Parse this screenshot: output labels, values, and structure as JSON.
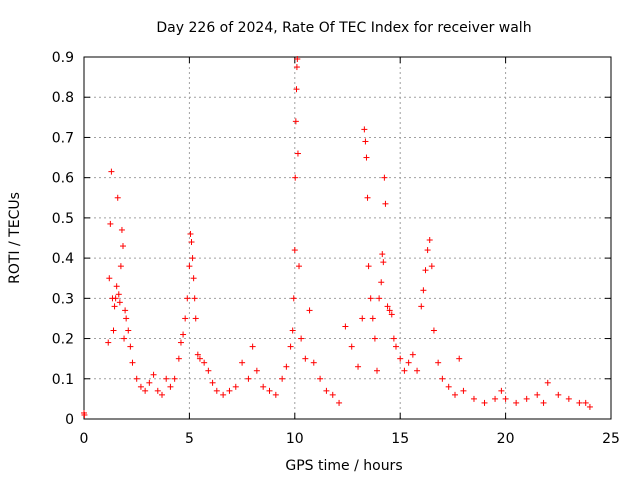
{
  "chart_data": {
    "type": "scatter",
    "title": "Day 226 of 2024, Rate Of TEC Index for receiver walh",
    "xlabel": "GPS time / hours",
    "ylabel": "ROTI / TECUs",
    "xlim": [
      0,
      25
    ],
    "ylim": [
      0,
      0.9
    ],
    "xticks": [
      0,
      5,
      10,
      15,
      20,
      25
    ],
    "xtick_labels": [
      "0",
      "5",
      "10",
      "15",
      "20",
      "25"
    ],
    "yticks": [
      0,
      0.1,
      0.2,
      0.3,
      0.4,
      0.5,
      0.6,
      0.7,
      0.8,
      0.9
    ],
    "ytick_labels": [
      "0",
      "0.1",
      "0.2",
      "0.3",
      "0.4",
      "0.5",
      "0.6",
      "0.7",
      "0.8",
      "0.9"
    ],
    "grid": true,
    "marker": "plus",
    "series": [
      {
        "name": "ROTI",
        "color": "#ff0000",
        "x": [
          0.0,
          0.02,
          1.15,
          1.2,
          1.25,
          1.3,
          1.35,
          1.4,
          1.45,
          1.5,
          1.55,
          1.6,
          1.65,
          1.7,
          1.75,
          1.8,
          1.85,
          1.9,
          1.95,
          2.0,
          2.1,
          2.2,
          2.3,
          2.5,
          2.7,
          2.9,
          3.1,
          3.3,
          3.5,
          3.7,
          3.9,
          4.1,
          4.3,
          4.5,
          4.6,
          4.7,
          4.8,
          4.9,
          5.0,
          5.05,
          5.1,
          5.15,
          5.2,
          5.25,
          5.3,
          5.4,
          5.5,
          5.7,
          5.9,
          6.1,
          6.3,
          6.6,
          6.9,
          7.2,
          7.5,
          7.8,
          8.0,
          8.2,
          8.5,
          8.8,
          9.1,
          9.4,
          9.6,
          9.8,
          9.9,
          9.95,
          10.0,
          10.02,
          10.05,
          10.08,
          10.1,
          10.12,
          10.15,
          10.2,
          10.3,
          10.5,
          10.7,
          10.9,
          11.2,
          11.5,
          11.8,
          12.1,
          12.4,
          12.7,
          13.0,
          13.2,
          13.3,
          13.35,
          13.4,
          13.45,
          13.5,
          13.6,
          13.7,
          13.8,
          13.9,
          14.0,
          14.1,
          14.15,
          14.2,
          14.25,
          14.3,
          14.4,
          14.5,
          14.6,
          14.7,
          14.8,
          15.0,
          15.2,
          15.4,
          15.6,
          15.8,
          16.0,
          16.1,
          16.2,
          16.3,
          16.4,
          16.5,
          16.6,
          16.8,
          17.0,
          17.3,
          17.6,
          17.8,
          18.0,
          18.5,
          19.0,
          19.5,
          19.8,
          20.0,
          20.5,
          21.0,
          21.5,
          21.8,
          22.0,
          22.5,
          23.0,
          23.5,
          23.8,
          24.0
        ],
        "y": [
          0.015,
          0.01,
          0.19,
          0.35,
          0.485,
          0.615,
          0.3,
          0.22,
          0.28,
          0.3,
          0.33,
          0.55,
          0.31,
          0.29,
          0.38,
          0.47,
          0.43,
          0.2,
          0.27,
          0.25,
          0.22,
          0.18,
          0.14,
          0.1,
          0.08,
          0.07,
          0.09,
          0.11,
          0.07,
          0.06,
          0.1,
          0.08,
          0.1,
          0.15,
          0.19,
          0.21,
          0.25,
          0.3,
          0.38,
          0.46,
          0.44,
          0.4,
          0.35,
          0.3,
          0.25,
          0.16,
          0.15,
          0.14,
          0.12,
          0.09,
          0.07,
          0.06,
          0.07,
          0.08,
          0.14,
          0.1,
          0.18,
          0.12,
          0.08,
          0.07,
          0.06,
          0.1,
          0.13,
          0.18,
          0.22,
          0.3,
          0.42,
          0.6,
          0.74,
          0.82,
          0.875,
          0.895,
          0.66,
          0.38,
          0.2,
          0.15,
          0.27,
          0.14,
          0.1,
          0.07,
          0.06,
          0.04,
          0.23,
          0.18,
          0.13,
          0.25,
          0.72,
          0.69,
          0.65,
          0.55,
          0.38,
          0.3,
          0.25,
          0.2,
          0.12,
          0.3,
          0.34,
          0.41,
          0.39,
          0.6,
          0.535,
          0.28,
          0.27,
          0.26,
          0.2,
          0.18,
          0.15,
          0.12,
          0.14,
          0.16,
          0.12,
          0.28,
          0.32,
          0.37,
          0.42,
          0.445,
          0.38,
          0.22,
          0.14,
          0.1,
          0.08,
          0.06,
          0.15,
          0.07,
          0.05,
          0.04,
          0.05,
          0.07,
          0.05,
          0.04,
          0.05,
          0.06,
          0.04,
          0.09,
          0.06,
          0.05,
          0.04,
          0.04,
          0.03
        ]
      }
    ]
  }
}
